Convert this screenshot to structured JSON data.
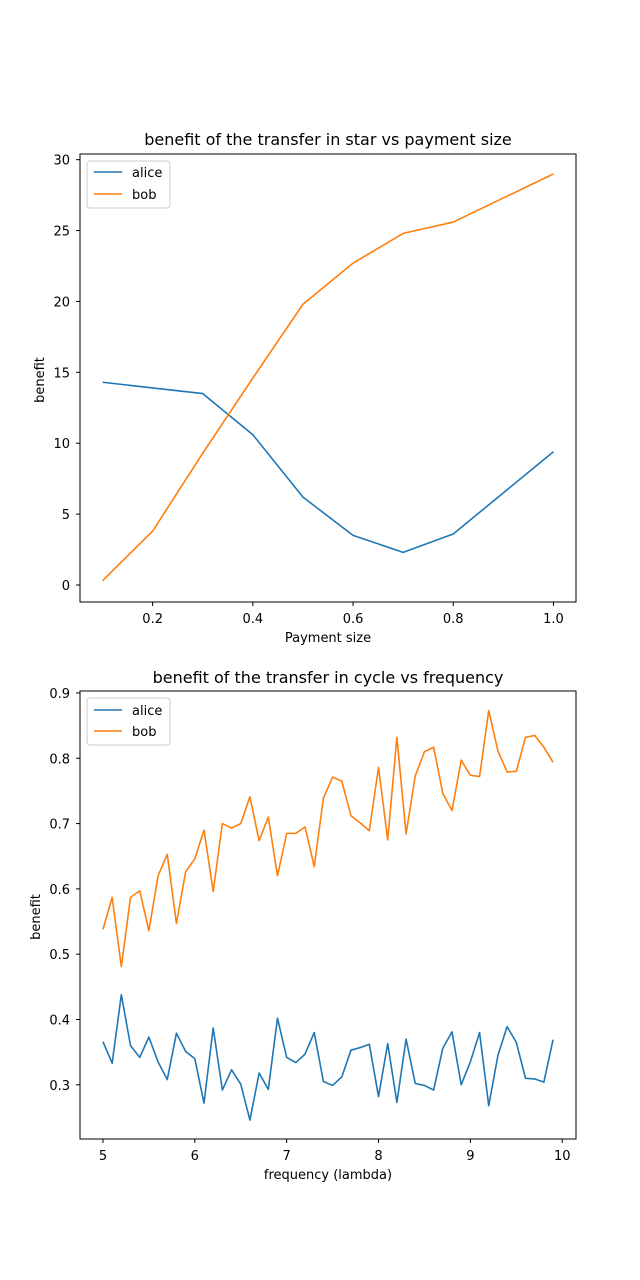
{
  "chart_data": [
    {
      "type": "line",
      "title": "benefit of the transfer in star vs payment size",
      "xlabel": "Payment size",
      "ylabel": "benefit",
      "xlim": [
        0.055,
        1.045
      ],
      "ylim": [
        -1.2,
        30.4
      ],
      "xticks": [
        0.2,
        0.4,
        0.6,
        0.8,
        1.0
      ],
      "xtick_labels": [
        "0.2",
        "0.4",
        "0.6",
        "0.8",
        "1.0"
      ],
      "yticks": [
        0,
        5,
        10,
        15,
        20,
        25,
        30
      ],
      "ytick_labels": [
        "0",
        "5",
        "10",
        "15",
        "20",
        "25",
        "30"
      ],
      "legend": "top-left",
      "x": [
        0.1,
        0.2,
        0.3,
        0.4,
        0.5,
        0.6,
        0.7,
        0.8,
        0.9,
        1.0
      ],
      "series": [
        {
          "name": "alice",
          "color": "#1f77b4",
          "values": [
            14.3,
            13.9,
            13.5,
            10.6,
            6.2,
            3.5,
            2.3,
            3.6,
            6.5,
            9.4
          ]
        },
        {
          "name": "bob",
          "color": "#ff7f0e",
          "values": [
            0.3,
            3.8,
            9.3,
            14.6,
            19.8,
            22.7,
            24.8,
            25.6,
            27.3,
            29.0
          ]
        }
      ]
    },
    {
      "type": "line",
      "title": "benefit of the transfer in cycle vs frequency",
      "xlabel": "frequency (lambda)",
      "ylabel": "benefit",
      "xlim": [
        4.75,
        10.15
      ],
      "ylim": [
        0.217,
        0.903
      ],
      "xticks": [
        5,
        6,
        7,
        8,
        9,
        10
      ],
      "xtick_labels": [
        "5",
        "6",
        "7",
        "8",
        "9",
        "10"
      ],
      "yticks": [
        0.3,
        0.4,
        0.5,
        0.6,
        0.7,
        0.8,
        0.9
      ],
      "ytick_labels": [
        "0.3",
        "0.4",
        "0.5",
        "0.6",
        "0.7",
        "0.8",
        "0.9"
      ],
      "legend": "top-left",
      "x": [
        5.0,
        5.1,
        5.2,
        5.3,
        5.4,
        5.5,
        5.6,
        5.7,
        5.8,
        5.9,
        6.0,
        6.1,
        6.2,
        6.3,
        6.4,
        6.5,
        6.6,
        6.7,
        6.8,
        6.9,
        7.0,
        7.1,
        7.2,
        7.3,
        7.4,
        7.5,
        7.6,
        7.7,
        7.8,
        7.9,
        8.0,
        8.1,
        8.2,
        8.3,
        8.4,
        8.5,
        8.6,
        8.7,
        8.8,
        8.9,
        9.0,
        9.1,
        9.2,
        9.3,
        9.4,
        9.5,
        9.6,
        9.7,
        9.8,
        9.9
      ],
      "series": [
        {
          "name": "alice",
          "color": "#1f77b4",
          "values": [
            0.366,
            0.333,
            0.438,
            0.36,
            0.342,
            0.373,
            0.335,
            0.308,
            0.379,
            0.351,
            0.34,
            0.272,
            0.387,
            0.292,
            0.323,
            0.301,
            0.246,
            0.318,
            0.293,
            0.402,
            0.342,
            0.334,
            0.347,
            0.38,
            0.305,
            0.299,
            0.312,
            0.353,
            0.357,
            0.362,
            0.282,
            0.363,
            0.273,
            0.37,
            0.302,
            0.299,
            0.292,
            0.356,
            0.381,
            0.3,
            0.335,
            0.38,
            0.268,
            0.345,
            0.389,
            0.365,
            0.31,
            0.309,
            0.304,
            0.369
          ]
        },
        {
          "name": "bob",
          "color": "#ff7f0e",
          "values": [
            0.538,
            0.587,
            0.481,
            0.587,
            0.597,
            0.536,
            0.62,
            0.653,
            0.547,
            0.626,
            0.646,
            0.69,
            0.596,
            0.7,
            0.693,
            0.7,
            0.741,
            0.674,
            0.71,
            0.62,
            0.685,
            0.685,
            0.695,
            0.634,
            0.739,
            0.771,
            0.765,
            0.712,
            0.701,
            0.689,
            0.786,
            0.675,
            0.832,
            0.684,
            0.773,
            0.81,
            0.817,
            0.746,
            0.72,
            0.797,
            0.774,
            0.772,
            0.873,
            0.811,
            0.779,
            0.78,
            0.832,
            0.835,
            0.817,
            0.794
          ]
        }
      ]
    }
  ]
}
